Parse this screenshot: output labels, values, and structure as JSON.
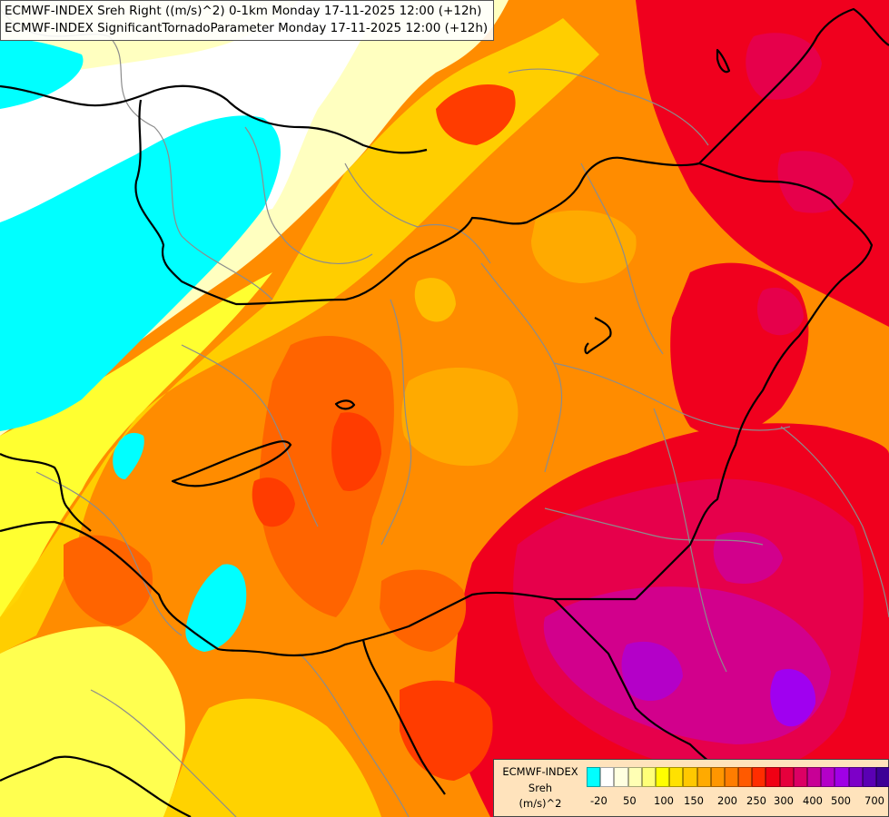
{
  "header": {
    "line1": "ECMWF-INDEX Sreh Right ((m/s)^2) 0-1km Monday 17-11-2025 12:00 (+12h)",
    "line2": "ECMWF-INDEX SignificantTornadoParameter Monday 17-11-2025 12:00 (+12h)"
  },
  "legend": {
    "model": "ECMWF-INDEX",
    "variable": "Sreh",
    "unit": "(m/s)^2",
    "colors": [
      "#00ffff",
      "#ffffff",
      "#ffffe0",
      "#ffffb4",
      "#ffff78",
      "#ffff00",
      "#ffe100",
      "#ffc800",
      "#ffaa00",
      "#ff9600",
      "#ff7d00",
      "#ff5a00",
      "#ff2d00",
      "#f00014",
      "#e6003c",
      "#dc0064",
      "#c80096",
      "#b400c8",
      "#a000e6",
      "#7d00c8",
      "#5a00b4",
      "#3c0096",
      "#14006e"
    ],
    "ticks": [
      "-20",
      "50",
      "100",
      "150",
      "200",
      "250",
      "300",
      "400",
      "500",
      "700"
    ]
  },
  "map": {
    "palette": {
      "cyan": "#00ffff",
      "white": "#ffffff",
      "pale_yellow": "#ffffc0",
      "yellow": "#ffff30",
      "gold": "#ffd200",
      "amber": "#ffaa00",
      "orange": "#ff8c00",
      "dark_orange": "#ff6400",
      "red_orange": "#ff3c00",
      "red": "#f0001e",
      "crimson": "#e6004b",
      "magenta": "#d2008c",
      "purple": "#b400c8",
      "violet": "#a000f0",
      "border": "#000000",
      "region_line": "#8c8c8c"
    }
  }
}
